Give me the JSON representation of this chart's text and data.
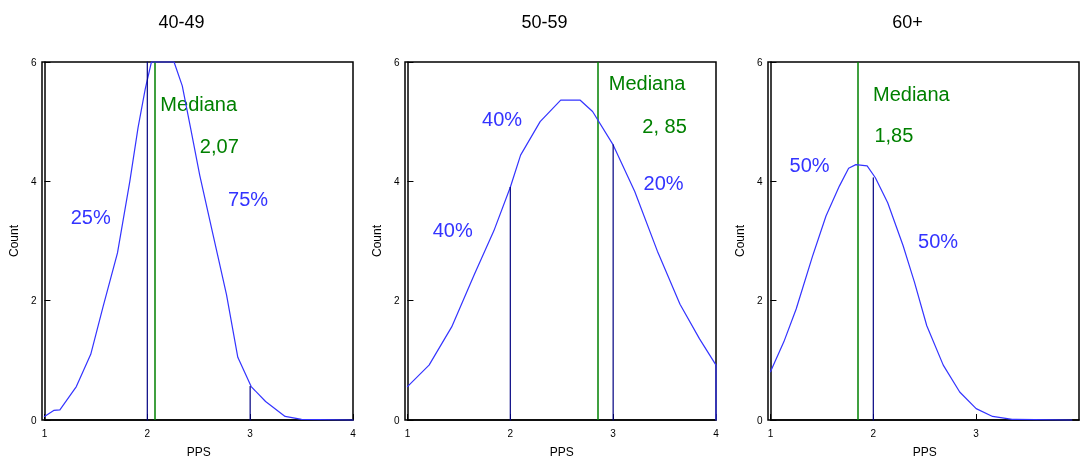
{
  "chart_data": [
    {
      "type": "line",
      "title": "40-49",
      "xlabel": "PPS",
      "ylabel": "Count",
      "xlim": [
        1,
        4
      ],
      "xticks": [
        1,
        2,
        3,
        4
      ],
      "ylim": [
        0,
        6
      ],
      "yticks": [
        0,
        2,
        4,
        6
      ],
      "grid": false,
      "marker": "none",
      "line_style": "solid",
      "series": [
        {
          "color": "#3333ff",
          "x": [
            1,
            1.09,
            1.15,
            1.31,
            1.45,
            1.57,
            1.71,
            1.83,
            1.91,
            1.98,
            2.04,
            2.26,
            2.34,
            2.42,
            2.51,
            2.64,
            2.77,
            2.88,
            3.01,
            3.15,
            3.34,
            3.5,
            4
          ],
          "values": [
            0.06,
            0.16,
            0.17,
            0.56,
            1.1,
            1.9,
            2.8,
            4.0,
            4.9,
            5.55,
            6,
            6,
            5.6,
            4.9,
            4.1,
            3.1,
            2.1,
            1.05,
            0.56,
            0.31,
            0.06,
            0.01,
            0
          ]
        },
        {
          "color": "#000080",
          "x": [
            2,
            2
          ],
          "values": [
            0,
            6
          ]
        },
        {
          "color": "#000080",
          "x": [
            3,
            3
          ],
          "values": [
            0,
            0.56
          ]
        }
      ],
      "ref_lines": [
        {
          "axis": "x",
          "value": 2.07,
          "color": "#008000"
        }
      ],
      "annotations": [
        "Mediana",
        "2,07",
        "25%",
        "75%"
      ]
    },
    {
      "type": "line",
      "title": "50-59",
      "xlabel": "PPS",
      "ylabel": "Count",
      "xlim": [
        1,
        4
      ],
      "xticks": [
        1,
        2,
        3,
        4
      ],
      "ylim": [
        0,
        6
      ],
      "yticks": [
        0,
        2,
        4,
        6
      ],
      "grid": false,
      "marker": "none",
      "line_style": "solid",
      "series": [
        {
          "color": "#3333ff",
          "x": [
            1,
            1.21,
            1.43,
            1.65,
            1.84,
            2.0,
            2.1,
            2.29,
            2.49,
            2.68,
            2.8,
            3.0,
            3.21,
            3.43,
            3.65,
            3.84,
            4,
            4
          ],
          "values": [
            0.56,
            0.92,
            1.56,
            2.44,
            3.17,
            3.9,
            4.44,
            5.0,
            5.36,
            5.36,
            5.17,
            4.61,
            3.83,
            2.83,
            1.94,
            1.36,
            0.92,
            0
          ]
        },
        {
          "color": "#000080",
          "x": [
            2,
            2
          ],
          "values": [
            0,
            3.9
          ]
        },
        {
          "color": "#000080",
          "x": [
            3,
            3
          ],
          "values": [
            0,
            4.61
          ]
        }
      ],
      "ref_lines": [
        {
          "axis": "x",
          "value": 2.85,
          "color": "#008000"
        }
      ],
      "annotations": [
        "40%",
        "40%",
        "Mediana",
        "2, 85",
        "20%"
      ]
    },
    {
      "type": "line",
      "title": "60+",
      "xlabel": "PPS",
      "ylabel": "Count",
      "xlim": [
        1,
        4
      ],
      "xticks": [
        1,
        2,
        3
      ],
      "ylim": [
        0,
        6
      ],
      "yticks": [
        0,
        2,
        4,
        6
      ],
      "grid": false,
      "marker": "none",
      "line_style": "solid",
      "series": [
        {
          "color": "#3333ff",
          "x": [
            1,
            1.13,
            1.25,
            1.41,
            1.54,
            1.67,
            1.76,
            1.83,
            1.94,
            2.02,
            2.14,
            2.29,
            2.4,
            2.52,
            2.68,
            2.84,
            3.0,
            3.16,
            3.35,
            3.93
          ],
          "values": [
            0.81,
            1.31,
            1.86,
            2.75,
            3.42,
            3.92,
            4.22,
            4.28,
            4.26,
            4.06,
            3.64,
            2.92,
            2.31,
            1.58,
            0.92,
            0.47,
            0.19,
            0.06,
            0.01,
            0
          ]
        },
        {
          "color": "#000080",
          "x": [
            2,
            2
          ],
          "values": [
            0,
            4.06
          ]
        }
      ],
      "ref_lines": [
        {
          "axis": "x",
          "value": 1.85,
          "color": "#008000"
        }
      ],
      "annotations": [
        "Mediana",
        "1,85",
        "50%",
        "50%"
      ]
    }
  ]
}
